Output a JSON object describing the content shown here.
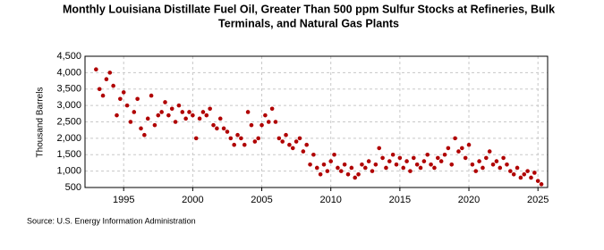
{
  "chart_data": {
    "type": "scatter",
    "title": [
      "Monthly Louisiana Distillate Fuel Oil, Greater Than 500 ppm Sulfur Stocks at Refineries, Bulk",
      "Terminals, and Natural Gas Plants"
    ],
    "y_label": "Thousand Barrels",
    "source": "Source: U.S. Energy Information Administration",
    "color": "#b00000",
    "grid": true,
    "xlim": [
      1992.2,
      2025.7
    ],
    "xticks": [
      1995,
      2000,
      2005,
      2010,
      2015,
      2020,
      2025
    ],
    "ylim": [
      500,
      4500
    ],
    "yticks": [
      500,
      {
        "value": 1000,
        "label": "1,000"
      },
      {
        "value": 1500,
        "label": "1,500"
      },
      {
        "value": 2000,
        "label": "2,000"
      },
      {
        "value": 2500,
        "label": "2,500"
      },
      {
        "value": 3000,
        "label": "3,000"
      },
      {
        "value": 3500,
        "label": "3,500"
      },
      {
        "value": 4000,
        "label": "4,000"
      },
      {
        "value": 4500,
        "label": "4,500"
      }
    ],
    "x": [
      1993.0,
      1993.25,
      1993.5,
      1993.75,
      1994.0,
      1994.25,
      1994.5,
      1994.75,
      1995.0,
      1995.25,
      1995.5,
      1995.75,
      1996.0,
      1996.25,
      1996.5,
      1996.75,
      1997.0,
      1997.25,
      1997.5,
      1997.75,
      1998.0,
      1998.25,
      1998.5,
      1998.75,
      1999.0,
      1999.25,
      1999.5,
      1999.75,
      2000.0,
      2000.25,
      2000.5,
      2000.75,
      2001.0,
      2001.25,
      2001.5,
      2001.75,
      2002.0,
      2002.25,
      2002.5,
      2002.75,
      2003.0,
      2003.25,
      2003.5,
      2003.75,
      2004.0,
      2004.25,
      2004.5,
      2004.75,
      2005.0,
      2005.25,
      2005.5,
      2005.75,
      2006.0,
      2006.25,
      2006.5,
      2006.75,
      2007.0,
      2007.25,
      2007.5,
      2007.75,
      2008.0,
      2008.25,
      2008.5,
      2008.75,
      2009.0,
      2009.25,
      2009.5,
      2009.75,
      2010.0,
      2010.25,
      2010.5,
      2010.75,
      2011.0,
      2011.25,
      2011.5,
      2011.75,
      2012.0,
      2012.25,
      2012.5,
      2012.75,
      2013.0,
      2013.25,
      2013.5,
      2013.75,
      2014.0,
      2014.25,
      2014.5,
      2014.75,
      2015.0,
      2015.25,
      2015.5,
      2015.75,
      2016.0,
      2016.25,
      2016.5,
      2016.75,
      2017.0,
      2017.25,
      2017.5,
      2017.75,
      2018.0,
      2018.25,
      2018.5,
      2018.75,
      2019.0,
      2019.25,
      2019.5,
      2019.75,
      2020.0,
      2020.25,
      2020.5,
      2020.75,
      2021.0,
      2021.25,
      2021.5,
      2021.75,
      2022.0,
      2022.25,
      2022.5,
      2022.75,
      2023.0,
      2023.25,
      2023.5,
      2023.75,
      2024.0,
      2024.25,
      2024.5,
      2024.75,
      2025.0,
      2025.25
    ],
    "values": [
      4100,
      3500,
      3300,
      3800,
      4000,
      3600,
      2700,
      3200,
      3400,
      3000,
      2500,
      2800,
      3200,
      2300,
      2100,
      2600,
      3300,
      2400,
      2700,
      2800,
      3100,
      2700,
      2900,
      2500,
      3000,
      2800,
      2600,
      2800,
      2700,
      2000,
      2600,
      2800,
      2700,
      2900,
      2400,
      2300,
      2600,
      2300,
      2200,
      2000,
      1800,
      2100,
      2000,
      1800,
      2800,
      2400,
      1900,
      2000,
      2400,
      2700,
      2500,
      2900,
      2500,
      2000,
      1900,
      2100,
      1800,
      1700,
      1900,
      2000,
      1600,
      1800,
      1200,
      1500,
      1100,
      900,
      1200,
      1000,
      1300,
      1500,
      1100,
      1000,
      1200,
      900,
      1100,
      800,
      900,
      1200,
      1100,
      1300,
      1000,
      1200,
      1700,
      1400,
      1100,
      1300,
      1500,
      1200,
      1400,
      1100,
      1300,
      1000,
      1400,
      1200,
      1100,
      1300,
      1500,
      1200,
      1100,
      1400,
      1300,
      1500,
      1700,
      1200,
      2000,
      1600,
      1700,
      1400,
      1800,
      1200,
      1000,
      1300,
      1100,
      1400,
      1600,
      1200,
      1300,
      1100,
      1400,
      1200,
      1000,
      900,
      1100,
      800,
      900,
      1000,
      800,
      950,
      700,
      600
    ]
  }
}
